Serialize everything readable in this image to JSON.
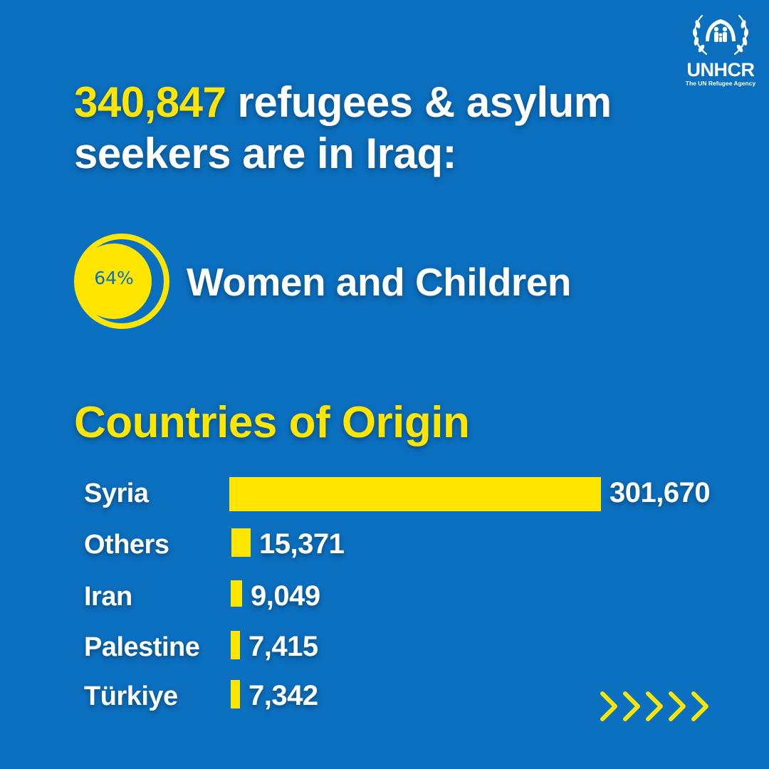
{
  "headline": {
    "highlight": "340,847",
    "text": " refugees & asylum seekers are in Iraq:"
  },
  "logo": {
    "brand": "UNHCR",
    "tagline": "The UN Refugee Agency",
    "icon": "unhcr-emblem-icon"
  },
  "stat": {
    "percent_label": "64%",
    "percent_value": 64,
    "label": "Women and Children"
  },
  "section_title": "Countries of Origin",
  "colors": {
    "background": "#0b6fbf",
    "accent": "#ffe600",
    "text": "#ffffff"
  },
  "chart_data": {
    "type": "bar",
    "orientation": "horizontal",
    "title": "Countries of Origin",
    "categories": [
      "Syria",
      "Others",
      "Iran",
      "Palestine",
      "Türkiye"
    ],
    "values": [
      301670,
      15371,
      9049,
      7415,
      7342
    ],
    "value_labels": [
      "301,670",
      "15,371",
      "9,049",
      "7,415",
      "7,342"
    ],
    "xlim": [
      0,
      301670
    ],
    "grid": false,
    "legend": "none"
  },
  "nav": {
    "next_icon": "chevron-arrows-icon"
  }
}
